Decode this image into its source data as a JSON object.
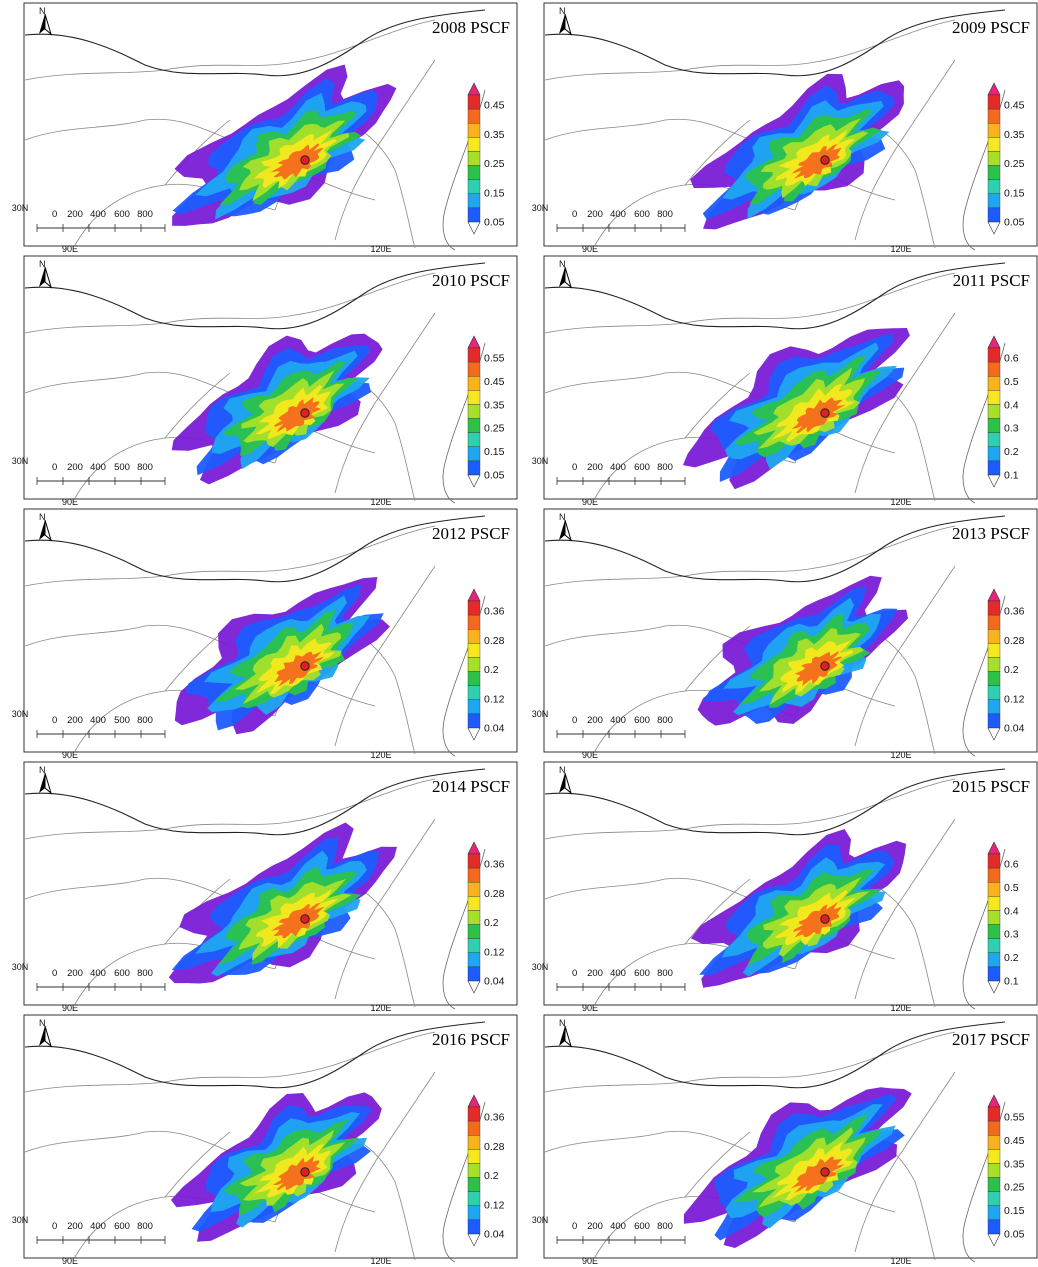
{
  "figure": {
    "colorbar_colors": [
      "#7a1cd6",
      "#1c5cff",
      "#1fa6f0",
      "#2fd0b0",
      "#2cc24a",
      "#a6e02a",
      "#f5e81e",
      "#f7b21e",
      "#f46a1c",
      "#e52a2a",
      "#e8247a"
    ],
    "panels": [
      {
        "title": "2008 PSCF",
        "scale_ticks": [
          "0",
          "200",
          "400",
          "600",
          "800"
        ],
        "colorbar_labels": [
          "0.45",
          "0.35",
          "0.25",
          "0.15",
          "0.05"
        ],
        "lat_label": "30N",
        "lon_labels": [
          "90E",
          "120E"
        ]
      },
      {
        "title": "2009 PSCF",
        "scale_ticks": [
          "0",
          "200",
          "400",
          "600",
          "800"
        ],
        "colorbar_labels": [
          "0.45",
          "0.35",
          "0.25",
          "0.15",
          "0.05"
        ],
        "lat_label": "30N",
        "lon_labels": [
          "90E",
          "120E"
        ]
      },
      {
        "title": "2010 PSCF",
        "scale_ticks": [
          "0",
          "200",
          "400",
          "500",
          "800"
        ],
        "colorbar_labels": [
          "0.55",
          "0.45",
          "0.35",
          "0.25",
          "0.15",
          "0.05"
        ],
        "lat_label": "30N",
        "lon_labels": [
          "90E",
          "120E"
        ]
      },
      {
        "title": "2011 PSCF",
        "scale_ticks": [
          "0",
          "200",
          "400",
          "600",
          "800"
        ],
        "colorbar_labels": [
          "0.6",
          "0.5",
          "0.4",
          "0.3",
          "0.2",
          "0.1"
        ],
        "lat_label": "30N",
        "lon_labels": [
          "90E",
          "120E"
        ]
      },
      {
        "title": "2012 PSCF",
        "scale_ticks": [
          "0",
          "200",
          "400",
          "500",
          "800"
        ],
        "colorbar_labels": [
          "0.36",
          "0.28",
          "0.2",
          "0.12",
          "0.04"
        ],
        "lat_label": "30N",
        "lon_labels": [
          "90E",
          "120E"
        ]
      },
      {
        "title": "2013 PSCF",
        "scale_ticks": [
          "0",
          "200",
          "400",
          "600",
          "800"
        ],
        "colorbar_labels": [
          "0.36",
          "0.28",
          "0.2",
          "0.12",
          "0.04"
        ],
        "lat_label": "30N",
        "lon_labels": [
          "90E",
          "120E"
        ]
      },
      {
        "title": "2014 PSCF",
        "scale_ticks": [
          "0",
          "200",
          "400",
          "600",
          "800"
        ],
        "colorbar_labels": [
          "0.36",
          "0.28",
          "0.2",
          "0.12",
          "0.04"
        ],
        "lat_label": "30N",
        "lon_labels": [
          "90E",
          "120E"
        ]
      },
      {
        "title": "2015 PSCF",
        "scale_ticks": [
          "0",
          "200",
          "400",
          "600",
          "800"
        ],
        "colorbar_labels": [
          "0.6",
          "0.5",
          "0.4",
          "0.3",
          "0.2",
          "0.1"
        ],
        "lat_label": "30N",
        "lon_labels": [
          "90E",
          "120E"
        ]
      },
      {
        "title": "2016 PSCF",
        "scale_ticks": [
          "0",
          "200",
          "400",
          "600",
          "800"
        ],
        "colorbar_labels": [
          "0.36",
          "0.28",
          "0.2",
          "0.12",
          "0.04"
        ],
        "lat_label": "30N",
        "lon_labels": [
          "90E",
          "120E"
        ]
      },
      {
        "title": "2017 PSCF",
        "scale_ticks": [
          "0",
          "200",
          "400",
          "600",
          "800"
        ],
        "colorbar_labels": [
          "0.55",
          "0.45",
          "0.35",
          "0.25",
          "0.15",
          "0.05"
        ],
        "lat_label": "30N",
        "lon_labels": [
          "90E",
          "120E"
        ]
      }
    ]
  }
}
